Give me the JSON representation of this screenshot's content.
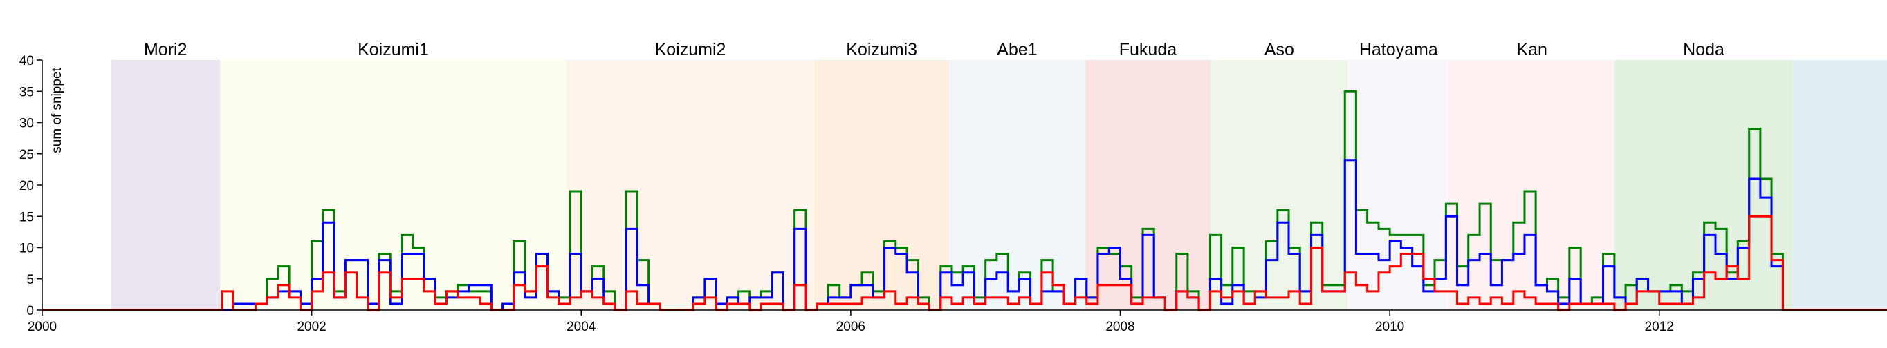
{
  "chart_data": {
    "type": "step",
    "ylabel": "sum of snippet",
    "xlim": [
      2000,
      2013.69
    ],
    "xticks": [
      2000,
      2002,
      2004,
      2006,
      2008,
      2010,
      2012
    ],
    "ylim": [
      0,
      40
    ],
    "yticks": [
      0,
      5,
      10,
      15,
      20,
      25,
      30,
      35,
      40
    ],
    "bands": [
      {
        "label": "Mori2",
        "start": 2000.51,
        "end": 2001.32,
        "color": "#ebe4f1"
      },
      {
        "label": "Koizumi1",
        "start": 2001.32,
        "end": 2003.89,
        "color": "#fefef0"
      },
      {
        "label": "Koizumi2",
        "start": 2003.89,
        "end": 2005.73,
        "color": "#fef4eb"
      },
      {
        "label": "Koizumi3",
        "start": 2005.73,
        "end": 2006.73,
        "color": "#fdeedf"
      },
      {
        "label": "Abe1",
        "start": 2006.73,
        "end": 2007.74,
        "color": "#f1f6fa"
      },
      {
        "label": "Fukuda",
        "start": 2007.74,
        "end": 2008.67,
        "color": "#fae3e3"
      },
      {
        "label": "Aso",
        "start": 2008.67,
        "end": 2009.69,
        "color": "#eef6ea"
      },
      {
        "label": "Hatoyama",
        "start": 2009.69,
        "end": 2010.44,
        "color": "#f7f6fa"
      },
      {
        "label": "Kan",
        "start": 2010.44,
        "end": 2011.67,
        "color": "#fdf1f1"
      },
      {
        "label": "Noda",
        "start": 2011.67,
        "end": 2012.99,
        "color": "#e2f0e0"
      },
      {
        "label": null,
        "start": 2012.99,
        "end": 2013.69,
        "color": "#e2edf4"
      }
    ],
    "x": [
      2000,
      2000.083,
      2000.167,
      2000.25,
      2000.333,
      2000.417,
      2000.5,
      2000.583,
      2000.667,
      2000.75,
      2000.833,
      2000.917,
      2001,
      2001.083,
      2001.167,
      2001.25,
      2001.333,
      2001.417,
      2001.5,
      2001.583,
      2001.667,
      2001.75,
      2001.833,
      2001.917,
      2002,
      2002.083,
      2002.167,
      2002.25,
      2002.333,
      2002.417,
      2002.5,
      2002.583,
      2002.667,
      2002.75,
      2002.833,
      2002.917,
      2003,
      2003.083,
      2003.167,
      2003.25,
      2003.333,
      2003.417,
      2003.5,
      2003.583,
      2003.667,
      2003.75,
      2003.833,
      2003.917,
      2004,
      2004.083,
      2004.167,
      2004.25,
      2004.333,
      2004.417,
      2004.5,
      2004.583,
      2004.667,
      2004.75,
      2004.833,
      2004.917,
      2005,
      2005.083,
      2005.167,
      2005.25,
      2005.333,
      2005.417,
      2005.5,
      2005.583,
      2005.667,
      2005.75,
      2005.833,
      2005.917,
      2006,
      2006.083,
      2006.167,
      2006.25,
      2006.333,
      2006.417,
      2006.5,
      2006.583,
      2006.667,
      2006.75,
      2006.833,
      2006.917,
      2007,
      2007.083,
      2007.167,
      2007.25,
      2007.333,
      2007.417,
      2007.5,
      2007.583,
      2007.667,
      2007.75,
      2007.833,
      2007.917,
      2008,
      2008.083,
      2008.167,
      2008.25,
      2008.333,
      2008.417,
      2008.5,
      2008.583,
      2008.667,
      2008.75,
      2008.833,
      2008.917,
      2009,
      2009.083,
      2009.167,
      2009.25,
      2009.333,
      2009.417,
      2009.5,
      2009.583,
      2009.667,
      2009.75,
      2009.833,
      2009.917,
      2010,
      2010.083,
      2010.167,
      2010.25,
      2010.333,
      2010.417,
      2010.5,
      2010.583,
      2010.667,
      2010.75,
      2010.833,
      2010.917,
      2011,
      2011.083,
      2011.167,
      2011.25,
      2011.333,
      2011.417,
      2011.5,
      2011.583,
      2011.667,
      2011.75,
      2011.833,
      2011.917,
      2012,
      2012.083,
      2012.167,
      2012.25,
      2012.333,
      2012.417,
      2012.5,
      2012.583,
      2012.667,
      2012.75,
      2012.833,
      2012.917,
      2013,
      2013.083,
      2013.167,
      2013.25,
      2013.333,
      2013.417,
      2013.5,
      2013.583
    ],
    "series": [
      {
        "color": "#008000",
        "values": [
          0,
          0,
          0,
          0,
          0,
          0,
          0,
          0,
          0,
          0,
          0,
          0,
          0,
          0,
          0,
          0,
          0,
          1,
          1,
          1,
          5,
          7,
          3,
          1,
          11,
          16,
          3,
          8,
          8,
          1,
          9,
          3,
          12,
          10,
          5,
          2,
          3,
          4,
          3,
          3,
          0,
          1,
          11,
          3,
          9,
          3,
          2,
          19,
          3,
          7,
          3,
          0,
          19,
          8,
          1,
          0,
          0,
          0,
          2,
          5,
          1,
          2,
          3,
          2,
          3,
          6,
          0,
          16,
          0,
          1,
          4,
          2,
          4,
          6,
          3,
          11,
          10,
          8,
          2,
          0,
          7,
          6,
          7,
          2,
          8,
          9,
          3,
          6,
          1,
          8,
          3,
          1,
          5,
          2,
          10,
          9,
          7,
          2,
          13,
          2,
          0,
          9,
          3,
          0,
          12,
          4,
          10,
          3,
          3,
          11,
          16,
          10,
          3,
          14,
          4,
          4,
          35,
          16,
          14,
          13,
          12,
          12,
          12,
          4,
          8,
          17,
          7,
          12,
          17,
          8,
          8,
          14,
          19,
          4,
          5,
          2,
          10,
          1,
          2,
          9,
          2,
          4,
          5,
          3,
          3,
          4,
          3,
          6,
          14,
          13,
          6,
          11,
          29,
          21,
          9,
          0,
          0,
          0,
          0,
          0,
          0,
          0,
          0,
          0
        ]
      },
      {
        "color": "#0000ff",
        "values": [
          0,
          0,
          0,
          0,
          0,
          0,
          0,
          0,
          0,
          0,
          0,
          0,
          0,
          0,
          0,
          0,
          0,
          1,
          1,
          1,
          2,
          3,
          3,
          1,
          5,
          14,
          2,
          8,
          8,
          1,
          8,
          1,
          9,
          9,
          5,
          1,
          2,
          3,
          4,
          4,
          0,
          1,
          6,
          2,
          9,
          3,
          1,
          9,
          3,
          5,
          1,
          0,
          13,
          4,
          1,
          0,
          0,
          0,
          2,
          5,
          1,
          2,
          1,
          2,
          2,
          6,
          0,
          13,
          0,
          1,
          2,
          2,
          4,
          4,
          2,
          10,
          9,
          6,
          1,
          0,
          6,
          4,
          6,
          1,
          5,
          6,
          3,
          5,
          1,
          3,
          3,
          1,
          5,
          2,
          9,
          10,
          5,
          1,
          12,
          2,
          0,
          3,
          2,
          0,
          5,
          1,
          4,
          1,
          2,
          8,
          14,
          9,
          3,
          12,
          3,
          3,
          24,
          9,
          9,
          8,
          11,
          10,
          7,
          3,
          5,
          15,
          4,
          8,
          9,
          4,
          8,
          9,
          12,
          4,
          3,
          1,
          5,
          1,
          1,
          7,
          2,
          1,
          5,
          3,
          3,
          3,
          1,
          5,
          12,
          9,
          5,
          10,
          21,
          18,
          7,
          0,
          0,
          0,
          0,
          0,
          0,
          0,
          0,
          0
        ]
      },
      {
        "color": "#ff0000",
        "values": [
          0,
          0,
          0,
          0,
          0,
          0,
          0,
          0,
          0,
          0,
          0,
          0,
          0,
          0,
          0,
          0,
          3,
          0,
          0,
          1,
          2,
          4,
          2,
          0,
          3,
          6,
          2,
          6,
          2,
          0,
          6,
          2,
          5,
          5,
          3,
          1,
          3,
          2,
          2,
          1,
          0,
          0,
          4,
          3,
          7,
          2,
          1,
          2,
          3,
          2,
          1,
          0,
          3,
          1,
          1,
          0,
          0,
          0,
          1,
          2,
          0,
          1,
          1,
          0,
          1,
          1,
          0,
          4,
          0,
          1,
          1,
          1,
          1,
          2,
          2,
          3,
          1,
          2,
          1,
          0,
          2,
          1,
          2,
          1,
          2,
          2,
          1,
          2,
          1,
          6,
          4,
          1,
          2,
          1,
          4,
          4,
          4,
          1,
          2,
          2,
          0,
          3,
          2,
          0,
          3,
          2,
          3,
          1,
          3,
          2,
          2,
          3,
          1,
          10,
          3,
          3,
          6,
          4,
          3,
          6,
          7,
          9,
          9,
          5,
          3,
          3,
          1,
          2,
          1,
          2,
          1,
          3,
          2,
          1,
          1,
          0,
          1,
          1,
          1,
          1,
          0,
          1,
          3,
          3,
          1,
          1,
          1,
          2,
          6,
          5,
          7,
          5,
          15,
          15,
          8,
          0,
          0,
          0,
          0,
          0,
          0,
          0,
          0,
          0
        ]
      }
    ]
  }
}
